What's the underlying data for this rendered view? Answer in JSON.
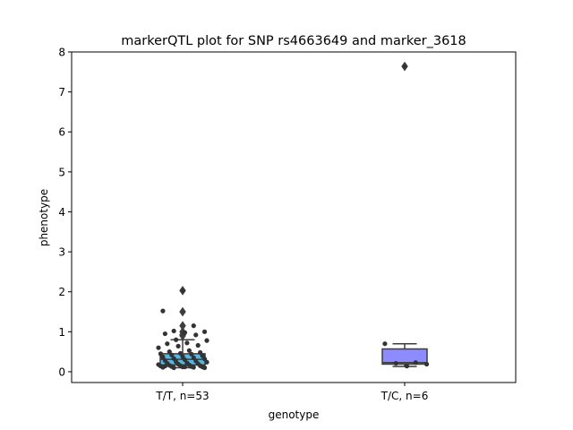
{
  "chart_data": {
    "type": "box",
    "title": "markerQTL plot for SNP rs4663649 and marker_3618",
    "xlabel": "genotype",
    "ylabel": "phenotype",
    "ylim": [
      -0.27,
      8.0
    ],
    "yticks": [
      0,
      1,
      2,
      3,
      4,
      5,
      6,
      7,
      8
    ],
    "grid": false,
    "legend": "none",
    "categories": [
      "T/T, n=53",
      "T/C, n=6"
    ],
    "boxes": [
      {
        "category": "T/T, n=53",
        "color": "#52B9E6",
        "q1": 0.17,
        "median": 0.31,
        "q3": 0.45,
        "whisker_low": 0.1,
        "whisker_high": 0.8,
        "outliers": [
          2.03,
          1.5,
          1.15,
          1.0,
          0.93,
          0.9
        ],
        "points": [
          2.03,
          1.52,
          1.15,
          1.02,
          1.0,
          0.98,
          0.95,
          0.92,
          0.8,
          0.78,
          0.72,
          0.7,
          0.66,
          0.64,
          0.6,
          0.53,
          0.5,
          0.48,
          0.46,
          0.45,
          0.44,
          0.42,
          0.4,
          0.38,
          0.37,
          0.35,
          0.33,
          0.32,
          0.3,
          0.28,
          0.27,
          0.25,
          0.24,
          0.22,
          0.21,
          0.2,
          0.19,
          0.18,
          0.17,
          0.16,
          0.15,
          0.15,
          0.14,
          0.13,
          0.13,
          0.12,
          0.12,
          0.11,
          0.11,
          0.1,
          0.1,
          0.12,
          0.14
        ]
      },
      {
        "category": "T/C, n=6",
        "color": "#8C8CFF",
        "q1": 0.19,
        "median": 0.23,
        "q3": 0.57,
        "whisker_low": 0.13,
        "whisker_high": 0.7,
        "outliers": [
          7.64
        ],
        "points": [
          7.64,
          0.7,
          0.23,
          0.21,
          0.19,
          0.14
        ]
      }
    ]
  }
}
